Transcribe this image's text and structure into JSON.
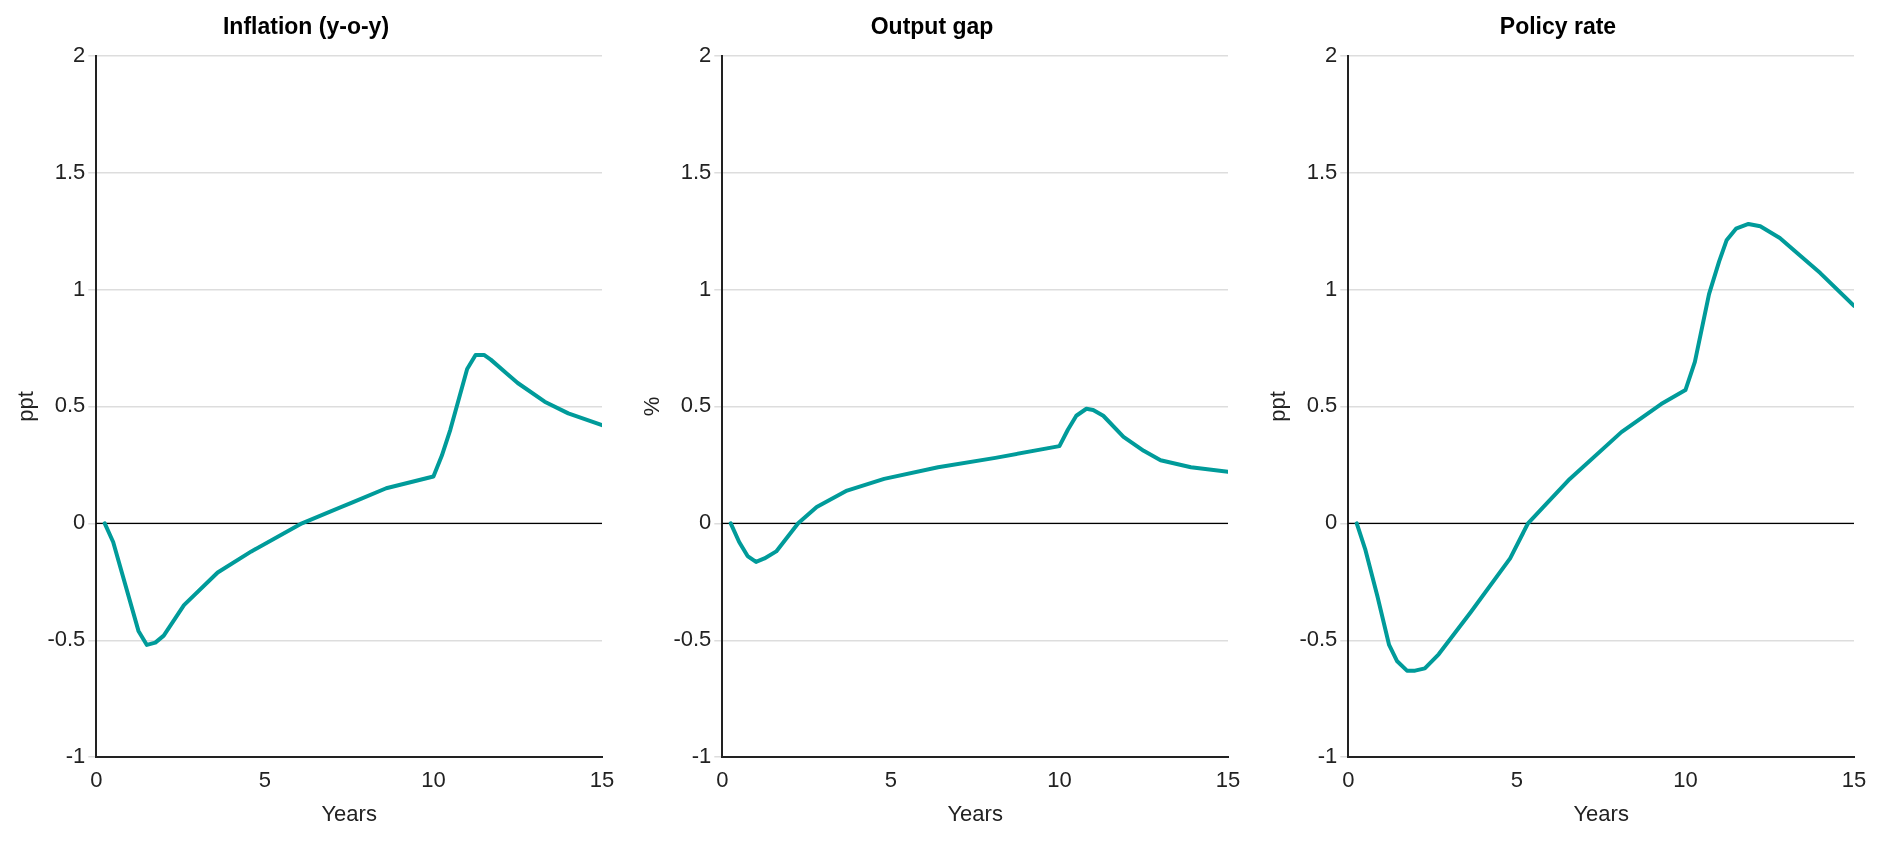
{
  "chart_data": [
    {
      "type": "line",
      "title": "Inflation (y-o-y)",
      "xlabel": "Years",
      "ylabel": "ppt",
      "xlim": [
        0,
        15
      ],
      "xticks": [
        0,
        5,
        10,
        15
      ],
      "ylim": [
        -1,
        2
      ],
      "yticks": [
        -1,
        -0.5,
        0,
        0.5,
        1,
        1.5,
        2
      ],
      "grid": "y",
      "marker": "none",
      "ref_lines": [
        {
          "axis": "y",
          "value": 0,
          "color": "#000000"
        }
      ],
      "series": [
        {
          "color": "#009b9a",
          "x": [
            0.25,
            0.5,
            1.25,
            1.5,
            1.75,
            2,
            2.6,
            3.6,
            4.6,
            6.1,
            7.6,
            8.6,
            10,
            10.25,
            10.5,
            11,
            11.25,
            11.5,
            11.7,
            12.5,
            13.3,
            14,
            15
          ],
          "values": [
            0,
            -0.08,
            -0.46,
            -0.52,
            -0.51,
            -0.48,
            -0.35,
            -0.21,
            -0.12,
            0,
            0.09,
            0.15,
            0.2,
            0.29,
            0.4,
            0.66,
            0.72,
            0.72,
            0.7,
            0.6,
            0.52,
            0.47,
            0.42
          ]
        }
      ]
    },
    {
      "type": "line",
      "title": "Output gap",
      "xlabel": "Years",
      "ylabel": "%",
      "xlim": [
        0,
        15
      ],
      "xticks": [
        0,
        5,
        10,
        15
      ],
      "ylim": [
        -1,
        2
      ],
      "yticks": [
        -1,
        -0.5,
        0,
        0.5,
        1,
        1.5,
        2
      ],
      "grid": "y",
      "marker": "none",
      "ref_lines": [
        {
          "axis": "y",
          "value": 0,
          "color": "#000000"
        }
      ],
      "series": [
        {
          "color": "#009b9a",
          "x": [
            0.25,
            0.5,
            0.75,
            1,
            1.25,
            1.6,
            2.25,
            2.8,
            3.7,
            4.8,
            6.4,
            8.1,
            10,
            10.25,
            10.5,
            10.8,
            11,
            11.3,
            11.9,
            12.5,
            13,
            13.9,
            15
          ],
          "values": [
            0,
            -0.08,
            -0.14,
            -0.165,
            -0.15,
            -0.12,
            0,
            0.07,
            0.14,
            0.19,
            0.24,
            0.28,
            0.33,
            0.4,
            0.46,
            0.49,
            0.485,
            0.46,
            0.37,
            0.31,
            0.27,
            0.24,
            0.22
          ]
        }
      ]
    },
    {
      "type": "line",
      "title": "Policy rate",
      "xlabel": "Years",
      "ylabel": "ppt",
      "xlim": [
        0,
        15
      ],
      "xticks": [
        0,
        5,
        10,
        15
      ],
      "ylim": [
        -1,
        2
      ],
      "yticks": [
        -1,
        -0.5,
        0,
        0.5,
        1,
        1.5,
        2
      ],
      "grid": "y",
      "marker": "none",
      "ref_lines": [
        {
          "axis": "y",
          "value": 0,
          "color": "#000000"
        }
      ],
      "series": [
        {
          "color": "#009b9a",
          "x": [
            0.25,
            0.5,
            0.86,
            1.21,
            1.45,
            1.74,
            1.98,
            2.27,
            2.68,
            3.63,
            4.8,
            5.33,
            6.57,
            8.1,
            9.28,
            10,
            10.28,
            10.7,
            11,
            11.22,
            11.5,
            11.87,
            12.22,
            12.8,
            14,
            15
          ],
          "values": [
            0,
            -0.11,
            -0.31,
            -0.52,
            -0.59,
            -0.63,
            -0.63,
            -0.62,
            -0.56,
            -0.38,
            -0.15,
            0,
            0.19,
            0.39,
            0.51,
            0.57,
            0.69,
            0.98,
            1.12,
            1.21,
            1.26,
            1.28,
            1.27,
            1.22,
            1.07,
            0.93
          ]
        }
      ]
    }
  ]
}
